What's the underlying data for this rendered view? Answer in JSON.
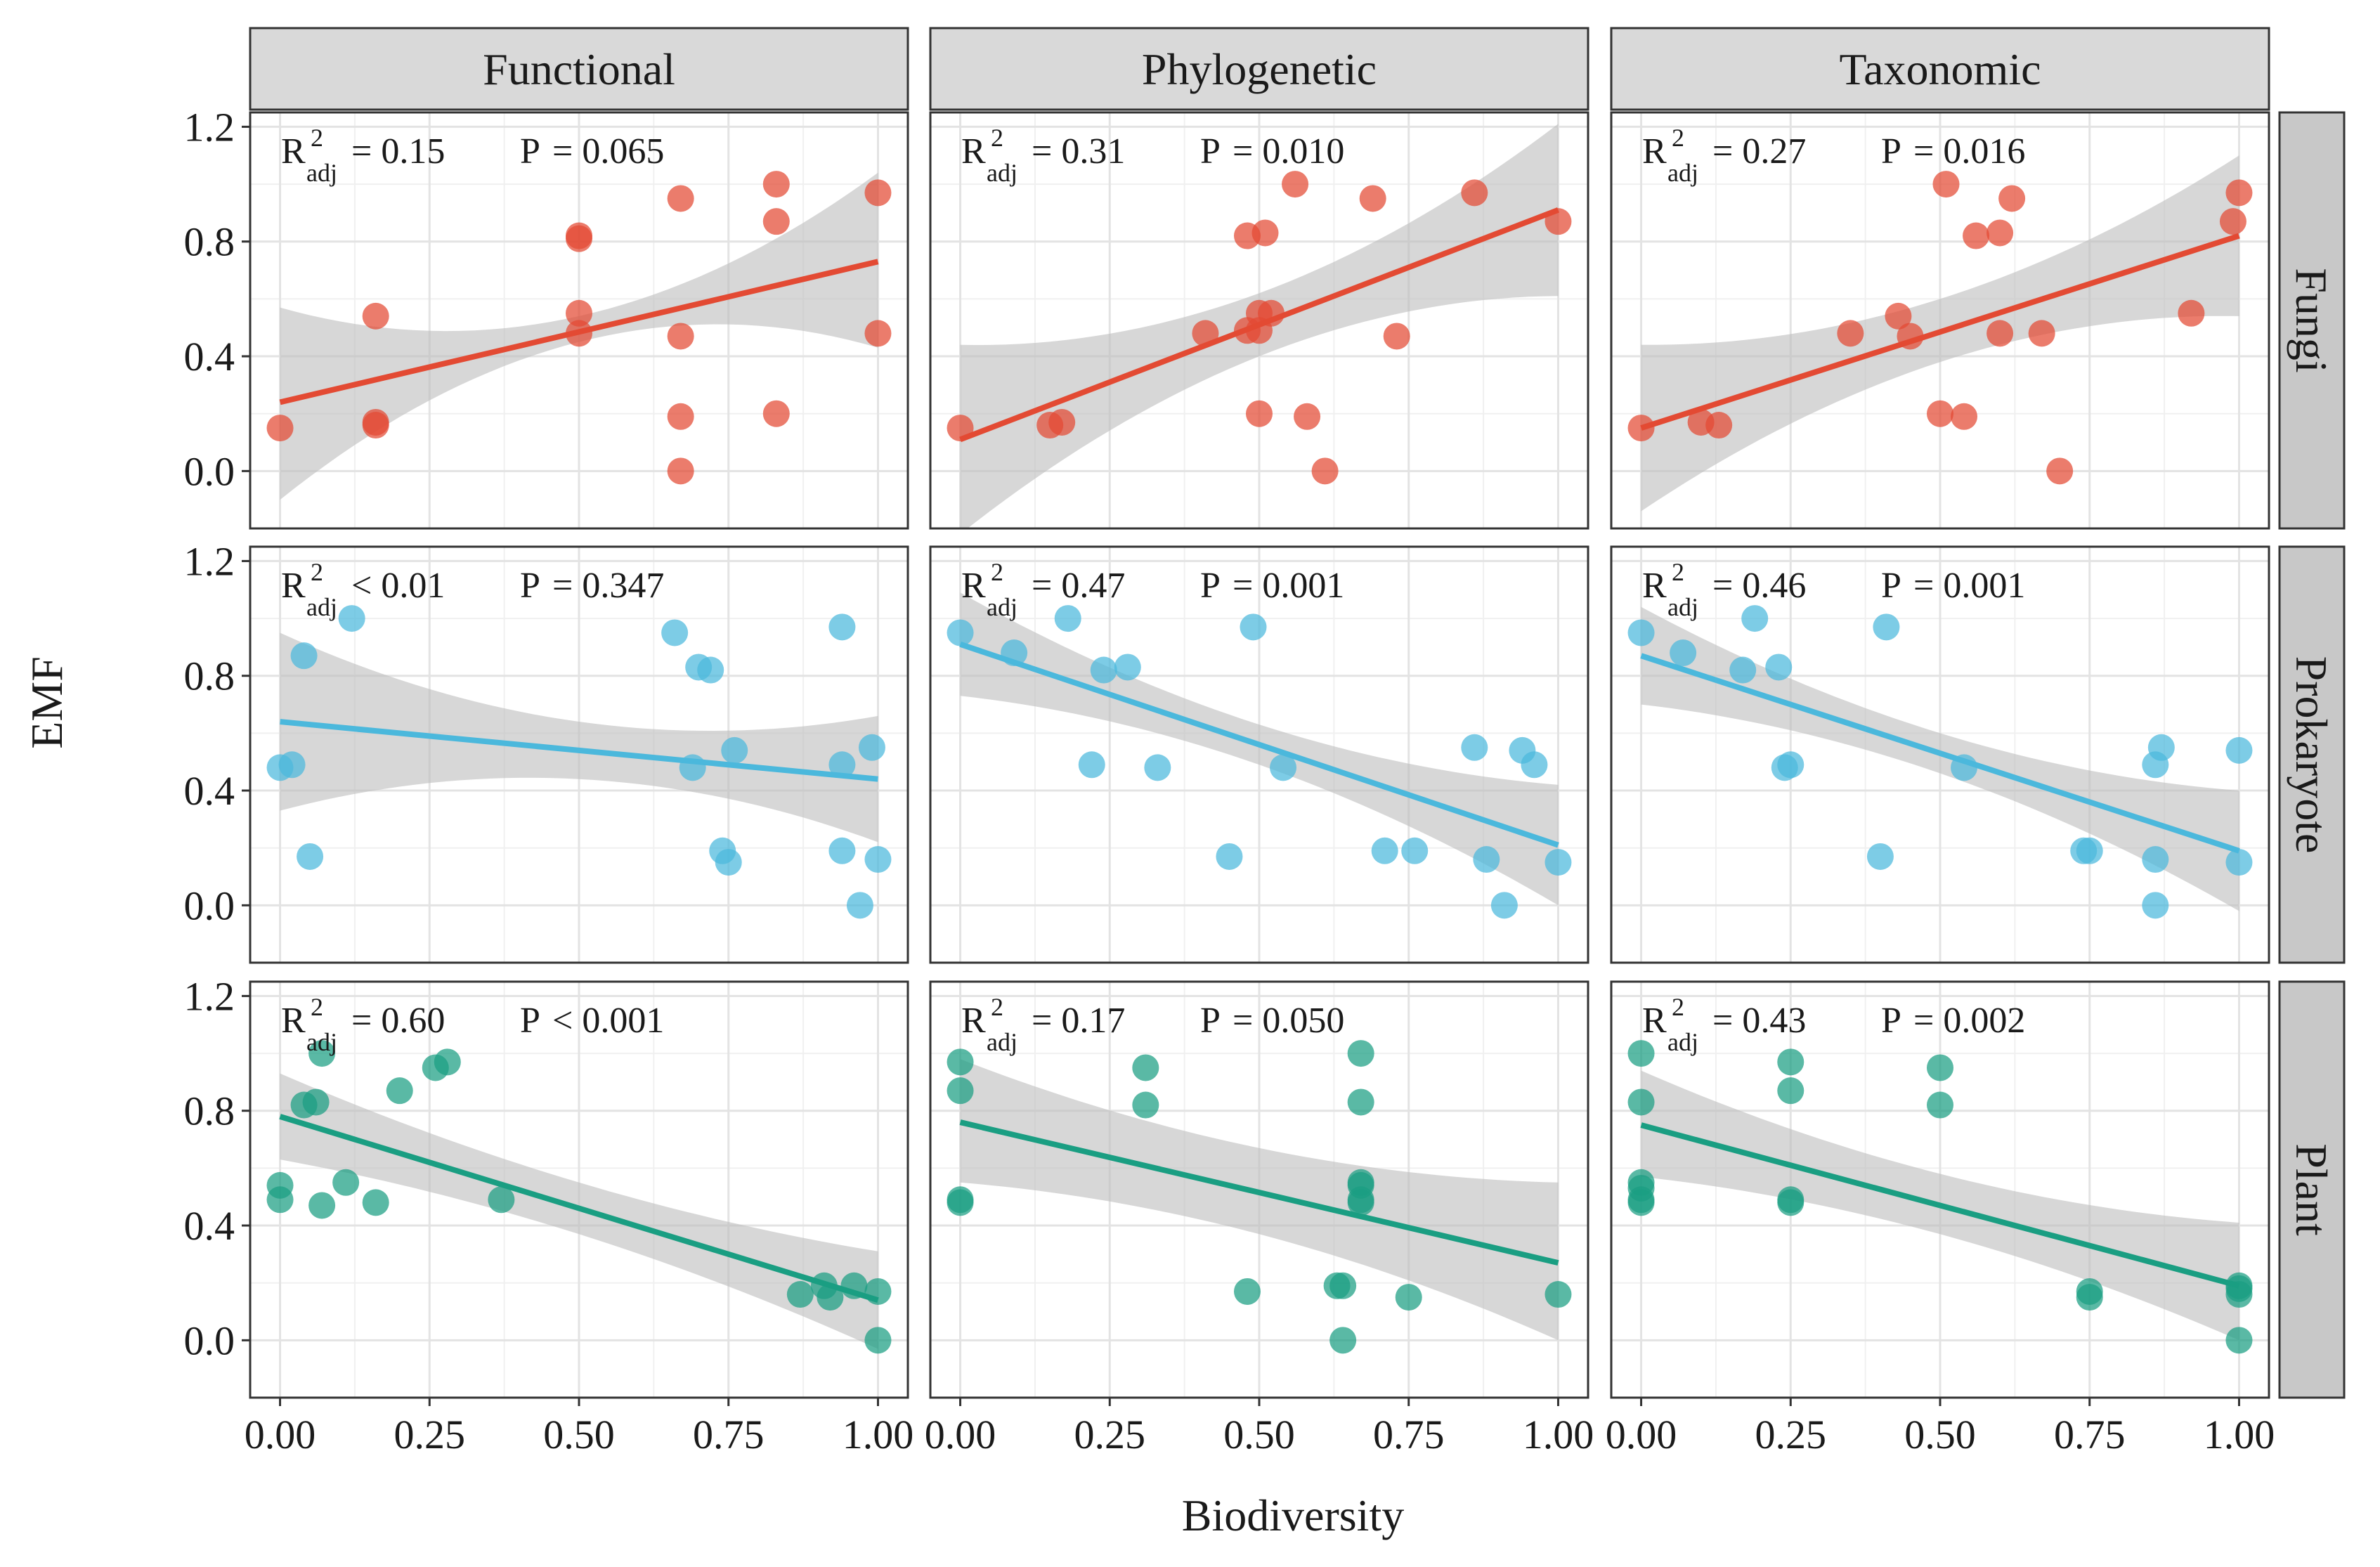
{
  "chart_data": {
    "type": "scatter",
    "layout": "facet-grid",
    "xlabel": "Biodiversity",
    "ylabel": "EMF",
    "xlim": [
      -0.05,
      1.05
    ],
    "ylim": [
      -0.2,
      1.25
    ],
    "xticks": [
      0,
      0.25,
      0.5,
      0.75,
      1
    ],
    "xtick_labels": [
      "0.00",
      "0.25",
      "0.50",
      "0.75",
      "1.00"
    ],
    "yticks": [
      0,
      0.4,
      0.8,
      1.2
    ],
    "ytick_labels": [
      "0.0",
      "0.4",
      "0.8",
      "1.2"
    ],
    "grid": true,
    "columns": [
      "Functional",
      "Phylogenetic",
      "Taxonomic"
    ],
    "rows": [
      "Fungi",
      "Prokaryote",
      "Plant"
    ],
    "colors": {
      "Fungi": "#e34a33",
      "Prokaryote": "#4bb8dc",
      "Plant": "#1a9e82",
      "ribbon": "#bdbdbd",
      "strip": "#d9d9d9"
    },
    "stat_labels": {
      "r": "R",
      "exp": "2",
      "sub": "adj",
      "p": "P"
    },
    "panels": [
      {
        "row": "Fungi",
        "column": "Functional",
        "r2_text": "= 0.15",
        "p_text": "= 0.065",
        "fit": [
          [
            0,
            0.24
          ],
          [
            1,
            0.73
          ]
        ],
        "band": {
          "lower": [
            -0.1,
            0.45,
            0.43
          ],
          "upper": [
            0.57,
            0.54,
            1.04
          ]
        },
        "points": [
          [
            0,
            0.15
          ],
          [
            0.16,
            0.54
          ],
          [
            0.16,
            0.17
          ],
          [
            0.16,
            0.16
          ],
          [
            0.5,
            0.82
          ],
          [
            0.5,
            0.81
          ],
          [
            0.5,
            0.55
          ],
          [
            0.5,
            0.48
          ],
          [
            0.67,
            0.95
          ],
          [
            0.67,
            0.47
          ],
          [
            0.67,
            0.19
          ],
          [
            0.67,
            0
          ],
          [
            0.83,
            1.0
          ],
          [
            0.83,
            0.87
          ],
          [
            0.83,
            0.2
          ],
          [
            1,
            0.97
          ],
          [
            1,
            0.48
          ]
        ]
      },
      {
        "row": "Fungi",
        "column": "Phylogenetic",
        "r2_text": "= 0.31",
        "p_text": "= 0.010",
        "fit": [
          [
            0,
            0.11
          ],
          [
            1,
            0.91
          ]
        ],
        "band": {
          "lower": [
            -0.22,
            0.4,
            0.61
          ],
          "upper": [
            0.44,
            0.62,
            1.21
          ]
        },
        "points": [
          [
            0,
            0.15
          ],
          [
            0.15,
            0.16
          ],
          [
            0.17,
            0.17
          ],
          [
            0.41,
            0.48
          ],
          [
            0.48,
            0.82
          ],
          [
            0.48,
            0.49
          ],
          [
            0.5,
            0.55
          ],
          [
            0.5,
            0.49
          ],
          [
            0.51,
            0.83
          ],
          [
            0.5,
            0.2
          ],
          [
            0.52,
            0.55
          ],
          [
            0.56,
            1.0
          ],
          [
            0.58,
            0.19
          ],
          [
            0.61,
            0
          ],
          [
            0.69,
            0.95
          ],
          [
            0.73,
            0.47
          ],
          [
            0.86,
            0.97
          ],
          [
            1,
            0.87
          ]
        ]
      },
      {
        "row": "Fungi",
        "column": "Taxonomic",
        "r2_text": "= 0.27",
        "p_text": "= 0.016",
        "fit": [
          [
            0,
            0.15
          ],
          [
            1,
            0.82
          ]
        ],
        "band": {
          "lower": [
            -0.14,
            0.38,
            0.54
          ],
          "upper": [
            0.44,
            0.6,
            1.1
          ]
        },
        "points": [
          [
            0,
            0.15
          ],
          [
            0.1,
            0.17
          ],
          [
            0.13,
            0.16
          ],
          [
            0.35,
            0.48
          ],
          [
            0.43,
            0.54
          ],
          [
            0.45,
            0.47
          ],
          [
            0.5,
            0.2
          ],
          [
            0.51,
            1.0
          ],
          [
            0.54,
            0.19
          ],
          [
            0.56,
            0.82
          ],
          [
            0.6,
            0.83
          ],
          [
            0.6,
            0.48
          ],
          [
            0.62,
            0.95
          ],
          [
            0.67,
            0.48
          ],
          [
            0.7,
            0
          ],
          [
            0.92,
            0.55
          ],
          [
            0.99,
            0.87
          ],
          [
            1,
            0.97
          ]
        ]
      },
      {
        "row": "Prokaryote",
        "column": "Functional",
        "r2_text": "< 0.01",
        "p_text": "= 0.347",
        "fit": [
          [
            0,
            0.64
          ],
          [
            1,
            0.44
          ]
        ],
        "band": {
          "lower": [
            0.33,
            0.44,
            0.22
          ],
          "upper": [
            0.95,
            0.64,
            0.66
          ]
        },
        "points": [
          [
            0,
            0.48
          ],
          [
            0.02,
            0.49
          ],
          [
            0.04,
            0.87
          ],
          [
            0.05,
            0.17
          ],
          [
            0.12,
            1.0
          ],
          [
            0.66,
            0.95
          ],
          [
            0.69,
            0.48
          ],
          [
            0.7,
            0.83
          ],
          [
            0.72,
            0.82
          ],
          [
            0.74,
            0.19
          ],
          [
            0.75,
            0.15
          ],
          [
            0.76,
            0.54
          ],
          [
            0.94,
            0.97
          ],
          [
            0.94,
            0.49
          ],
          [
            0.94,
            0.19
          ],
          [
            0.97,
            0
          ],
          [
            0.99,
            0.55
          ],
          [
            1,
            0.16
          ]
        ]
      },
      {
        "row": "Prokaryote",
        "column": "Phylogenetic",
        "r2_text": "= 0.47",
        "p_text": "= 0.001",
        "fit": [
          [
            0,
            0.91
          ],
          [
            1,
            0.21
          ]
        ],
        "band": {
          "lower": [
            0.73,
            0.49,
            0.0
          ],
          "upper": [
            1.09,
            0.63,
            0.42
          ]
        },
        "points": [
          [
            0,
            0.95
          ],
          [
            0.09,
            0.88
          ],
          [
            0.18,
            1.0
          ],
          [
            0.22,
            0.49
          ],
          [
            0.24,
            0.82
          ],
          [
            0.28,
            0.83
          ],
          [
            0.33,
            0.48
          ],
          [
            0.45,
            0.17
          ],
          [
            0.49,
            0.97
          ],
          [
            0.54,
            0.48
          ],
          [
            0.71,
            0.19
          ],
          [
            0.76,
            0.19
          ],
          [
            0.86,
            0.55
          ],
          [
            0.88,
            0.16
          ],
          [
            0.91,
            0
          ],
          [
            0.94,
            0.54
          ],
          [
            0.96,
            0.49
          ],
          [
            1,
            0.15
          ]
        ]
      },
      {
        "row": "Prokaryote",
        "column": "Taxonomic",
        "r2_text": "= 0.46",
        "p_text": "= 0.001",
        "fit": [
          [
            0,
            0.87
          ],
          [
            1,
            0.19
          ]
        ],
        "band": {
          "lower": [
            0.7,
            0.46,
            -0.02
          ],
          "upper": [
            1.04,
            0.6,
            0.4
          ]
        },
        "points": [
          [
            0,
            0.95
          ],
          [
            0.07,
            0.88
          ],
          [
            0.17,
            0.82
          ],
          [
            0.19,
            1.0
          ],
          [
            0.23,
            0.83
          ],
          [
            0.24,
            0.48
          ],
          [
            0.25,
            0.49
          ],
          [
            0.4,
            0.17
          ],
          [
            0.41,
            0.97
          ],
          [
            0.54,
            0.48
          ],
          [
            0.74,
            0.19
          ],
          [
            0.75,
            0.19
          ],
          [
            0.86,
            0.49
          ],
          [
            0.86,
            0
          ],
          [
            0.86,
            0.16
          ],
          [
            0.87,
            0.55
          ],
          [
            1,
            0.54
          ],
          [
            1,
            0.15
          ]
        ]
      },
      {
        "row": "Plant",
        "column": "Functional",
        "r2_text": "= 0.60",
        "p_text": "< 0.001",
        "fit": [
          [
            0,
            0.78
          ],
          [
            1,
            0.14
          ]
        ],
        "band": {
          "lower": [
            0.63,
            0.37,
            -0.03
          ],
          "upper": [
            0.93,
            0.55,
            0.31
          ]
        },
        "points": [
          [
            0,
            0.54
          ],
          [
            0,
            0.49
          ],
          [
            0.04,
            0.82
          ],
          [
            0.06,
            0.83
          ],
          [
            0.07,
            1.0
          ],
          [
            0.07,
            0.47
          ],
          [
            0.11,
            0.55
          ],
          [
            0.16,
            0.48
          ],
          [
            0.2,
            0.87
          ],
          [
            0.26,
            0.95
          ],
          [
            0.28,
            0.97
          ],
          [
            0.37,
            0.49
          ],
          [
            0.87,
            0.16
          ],
          [
            0.91,
            0.19
          ],
          [
            0.92,
            0.15
          ],
          [
            0.96,
            0.19
          ],
          [
            1,
            0.17
          ],
          [
            1,
            0
          ]
        ]
      },
      {
        "row": "Plant",
        "column": "Phylogenetic",
        "r2_text": "= 0.17",
        "p_text": "= 0.050",
        "fit": [
          [
            0,
            0.76
          ],
          [
            1,
            0.27
          ]
        ],
        "band": {
          "lower": [
            0.55,
            0.37,
            0.0
          ],
          "upper": [
            0.98,
            0.67,
            0.55
          ]
        },
        "points": [
          [
            0,
            0.97
          ],
          [
            0,
            0.87
          ],
          [
            0,
            0.49
          ],
          [
            0,
            0.48
          ],
          [
            0.31,
            0.95
          ],
          [
            0.31,
            0.82
          ],
          [
            0.48,
            0.17
          ],
          [
            0.63,
            0.19
          ],
          [
            0.64,
            0.19
          ],
          [
            0.64,
            0
          ],
          [
            0.67,
            1.0
          ],
          [
            0.67,
            0.83
          ],
          [
            0.67,
            0.55
          ],
          [
            0.67,
            0.54
          ],
          [
            0.67,
            0.49
          ],
          [
            0.67,
            0.48
          ],
          [
            0.75,
            0.15
          ],
          [
            1,
            0.16
          ]
        ]
      },
      {
        "row": "Plant",
        "column": "Taxonomic",
        "r2_text": "= 0.43",
        "p_text": "= 0.002",
        "fit": [
          [
            0,
            0.75
          ],
          [
            1,
            0.19
          ]
        ],
        "band": {
          "lower": [
            0.57,
            0.37,
            0.0
          ],
          "upper": [
            0.94,
            0.58,
            0.41
          ]
        },
        "points": [
          [
            0,
            1.0
          ],
          [
            0,
            0.83
          ],
          [
            0,
            0.55
          ],
          [
            0,
            0.53
          ],
          [
            0,
            0.49
          ],
          [
            0,
            0.48
          ],
          [
            0.25,
            0.97
          ],
          [
            0.25,
            0.87
          ],
          [
            0.25,
            0.49
          ],
          [
            0.25,
            0.48
          ],
          [
            0.5,
            0.95
          ],
          [
            0.5,
            0.82
          ],
          [
            0.75,
            0.17
          ],
          [
            0.75,
            0.15
          ],
          [
            1,
            0.19
          ],
          [
            1,
            0.18
          ],
          [
            1,
            0.16
          ],
          [
            1,
            0
          ]
        ]
      }
    ]
  }
}
